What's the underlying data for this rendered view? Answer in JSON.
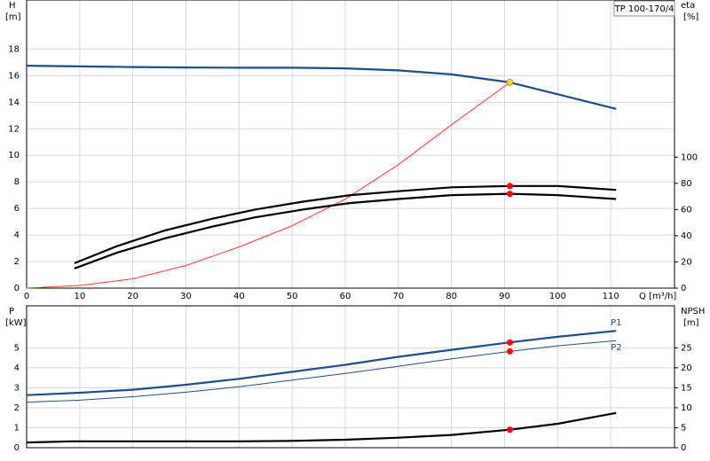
{
  "chart_data": [
    {
      "type": "line",
      "title": "TP 100-170/4",
      "y_label": "H",
      "y_unit": "[m]",
      "y2_label": "eta",
      "y2_unit": "[%]",
      "x_label": "Q [m³/h]",
      "xlim": [
        0,
        122
      ],
      "xticks": [
        0,
        10,
        20,
        30,
        40,
        50,
        60,
        70,
        80,
        90,
        100,
        110
      ],
      "x_tick_labels": true,
      "ylim": [
        0,
        21.7
      ],
      "yticks": [
        0,
        2,
        4,
        6,
        8,
        10,
        12,
        14,
        16,
        18
      ],
      "y2lim": [
        0,
        220
      ],
      "y2ticks": [
        0,
        20,
        40,
        60,
        80,
        100
      ],
      "grid": true,
      "series": [
        {
          "style": "thick",
          "color": "#1f4e8c",
          "x": [
            0,
            10,
            20,
            30,
            40,
            50,
            60,
            70,
            80,
            91,
            100,
            111
          ],
          "values": [
            16.75,
            16.7,
            16.65,
            16.62,
            16.6,
            16.6,
            16.55,
            16.4,
            16.1,
            15.5,
            14.6,
            13.5
          ]
        },
        {
          "style": "thin",
          "color": "#ff3b30",
          "x": [
            0,
            10,
            20,
            30,
            40,
            50,
            60,
            70,
            80,
            91
          ],
          "values": [
            0,
            0.2,
            0.7,
            1.7,
            3.1,
            4.7,
            6.7,
            9.3,
            12.3,
            15.5
          ]
        },
        {
          "style": "thick",
          "color": "#000000",
          "axis": "y2",
          "x": [
            9,
            17,
            26,
            35,
            43,
            52,
            61,
            70,
            80,
            91,
            100,
            111
          ],
          "values": [
            19,
            32,
            44,
            53,
            60,
            66,
            71,
            74,
            77,
            78,
            78,
            75
          ]
        },
        {
          "style": "thick",
          "color": "#000000",
          "axis": "y2",
          "x": [
            9,
            17,
            26,
            35,
            43,
            52,
            61,
            70,
            80,
            91,
            100,
            111
          ],
          "values": [
            15,
            27,
            38,
            47,
            54,
            60,
            65,
            68,
            71,
            72,
            71,
            68
          ]
        },
        {
          "style": "marker",
          "color": "#ffd23f",
          "x": [
            91
          ],
          "values": [
            15.5
          ]
        },
        {
          "style": "marker",
          "color": "#ff0000",
          "axis": "y2",
          "x": [
            91,
            91
          ],
          "values": [
            78,
            72
          ]
        }
      ]
    },
    {
      "type": "line",
      "y_label": "P",
      "y_unit": "[kW]",
      "y2_label": "NPSH",
      "y2_unit": "[m]",
      "xlim": [
        0,
        122
      ],
      "xticks": [
        0,
        10,
        20,
        30,
        40,
        50,
        60,
        70,
        80,
        90,
        100,
        110
      ],
      "x_tick_labels": false,
      "ylim": [
        0,
        7.1
      ],
      "yticks": [
        0,
        1,
        2,
        3,
        4,
        5
      ],
      "y2lim": [
        0,
        35.5
      ],
      "y2ticks": [
        0,
        5,
        10,
        15,
        20,
        25
      ],
      "grid": true,
      "series": [
        {
          "name": "P1",
          "style": "thick",
          "color": "#1f4e8c",
          "x": [
            0,
            10,
            20,
            30,
            40,
            50,
            60,
            70,
            80,
            91,
            100,
            111
          ],
          "values": [
            2.63,
            2.75,
            2.9,
            3.15,
            3.45,
            3.8,
            4.15,
            4.55,
            4.9,
            5.27,
            5.55,
            5.85
          ]
        },
        {
          "name": "P2",
          "style": "thin",
          "color": "#1f4e8c",
          "x": [
            0,
            10,
            20,
            30,
            40,
            50,
            60,
            70,
            80,
            91,
            100,
            111
          ],
          "values": [
            2.28,
            2.38,
            2.55,
            2.78,
            3.05,
            3.38,
            3.72,
            4.08,
            4.45,
            4.82,
            5.1,
            5.36
          ]
        },
        {
          "style": "thick",
          "color": "#000000",
          "axis": "y2",
          "x": [
            0,
            8.5,
            20,
            30,
            40,
            50,
            60,
            70,
            80,
            91,
            100,
            111
          ],
          "values": [
            1.3,
            1.6,
            1.6,
            1.6,
            1.6,
            1.7,
            2,
            2.5,
            3.2,
            4.5,
            6,
            8.7
          ]
        },
        {
          "style": "marker",
          "color": "#ff0000",
          "x": [
            91,
            91
          ],
          "values": [
            5.27,
            4.82
          ]
        },
        {
          "style": "marker",
          "color": "#ff0000",
          "axis": "y2",
          "x": [
            91
          ],
          "values": [
            4.5
          ]
        }
      ]
    }
  ]
}
